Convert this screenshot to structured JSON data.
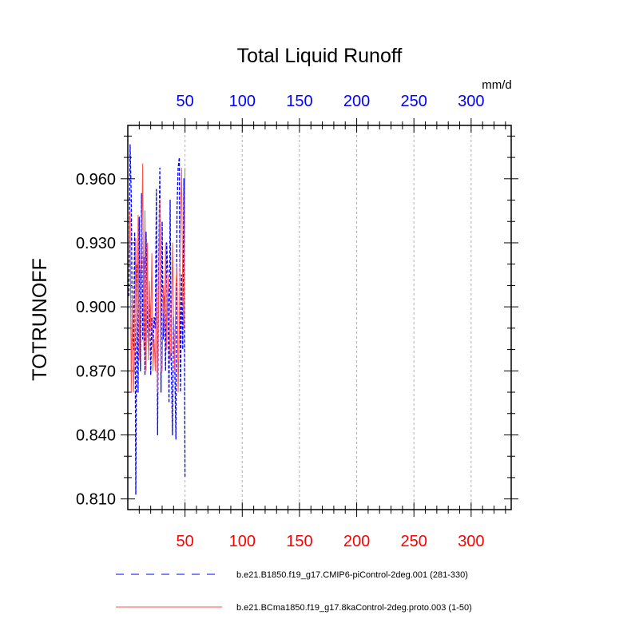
{
  "chart_data": {
    "type": "line",
    "title": "Total Liquid Runoff",
    "units": "mm/d",
    "ylabel": "TOTRUNOFF",
    "xlabel": "",
    "xlim": [
      0,
      335
    ],
    "ylim": [
      0.805,
      0.985
    ],
    "x_ticks_major": [
      50,
      100,
      150,
      200,
      250,
      300
    ],
    "x_tick_labels_bottom": [
      "50",
      "100",
      "150",
      "200",
      "250",
      "300"
    ],
    "x_tick_labels_top": [
      "50",
      "100",
      "150",
      "200",
      "250",
      "300"
    ],
    "y_ticks_major": [
      0.81,
      0.84,
      0.87,
      0.9,
      0.93,
      0.96
    ],
    "y_tick_labels": [
      "0.810",
      "0.840",
      "0.870",
      "0.900",
      "0.930",
      "0.960"
    ],
    "grid": "vertical dashed at major x ticks",
    "colors": {
      "bottom_tick_labels": "#ff0000",
      "top_tick_labels": "#0000ff"
    },
    "series": [
      {
        "name": "b.e21.B1850.f19_g17.CMIP6-piControl-2deg.001 (281-330)",
        "color": "#0000ff",
        "style": "dashed",
        "x": [
          1,
          2,
          3,
          4,
          5,
          6,
          7,
          8,
          9,
          10,
          11,
          12,
          13,
          14,
          15,
          16,
          17,
          18,
          19,
          20,
          21,
          22,
          23,
          24,
          25,
          26,
          27,
          28,
          29,
          30,
          31,
          32,
          33,
          34,
          35,
          36,
          37,
          38,
          39,
          40,
          41,
          42,
          43,
          44,
          45,
          46,
          47,
          48,
          49,
          50
        ],
        "values": [
          0.905,
          0.976,
          0.952,
          0.885,
          0.88,
          0.935,
          0.812,
          0.92,
          0.86,
          0.942,
          0.87,
          0.953,
          0.885,
          0.923,
          0.868,
          0.935,
          0.895,
          0.88,
          0.905,
          0.868,
          0.895,
          0.881,
          0.895,
          0.89,
          0.955,
          0.84,
          0.92,
          0.965,
          0.86,
          0.94,
          0.885,
          0.905,
          0.87,
          0.93,
          0.915,
          0.855,
          0.95,
          0.875,
          0.84,
          0.895,
          0.875,
          0.838,
          0.945,
          0.965,
          0.97,
          0.86,
          0.915,
          0.88,
          0.96,
          0.82
        ]
      },
      {
        "name": "b.e21.BCma1850.f19_g17.8kaControl-2deg.proto.003 (1-50)",
        "color": "#ff5050",
        "style": "solid",
        "x": [
          1,
          2,
          3,
          4,
          5,
          6,
          7,
          8,
          9,
          10,
          11,
          12,
          13,
          14,
          15,
          16,
          17,
          18,
          19,
          20,
          21,
          22,
          23,
          24,
          25,
          26,
          27,
          28,
          29,
          30,
          31,
          32,
          33,
          34,
          35,
          36,
          37,
          38,
          39,
          40,
          41,
          42,
          43,
          44,
          45,
          46,
          47,
          48,
          49,
          50
        ],
        "values": [
          0.925,
          0.945,
          0.86,
          0.905,
          0.86,
          0.885,
          0.932,
          0.88,
          0.943,
          0.875,
          0.915,
          0.925,
          0.967,
          0.88,
          0.945,
          0.87,
          0.93,
          0.875,
          0.912,
          0.89,
          0.925,
          0.87,
          0.885,
          0.87,
          0.91,
          0.86,
          0.91,
          0.95,
          0.87,
          0.87,
          0.91,
          0.89,
          0.93,
          0.88,
          0.915,
          0.905,
          0.875,
          0.88,
          0.93,
          0.895,
          0.87,
          0.91,
          0.92,
          0.86,
          0.89,
          0.94,
          0.965,
          0.905,
          0.89,
          0.965
        ]
      }
    ]
  }
}
